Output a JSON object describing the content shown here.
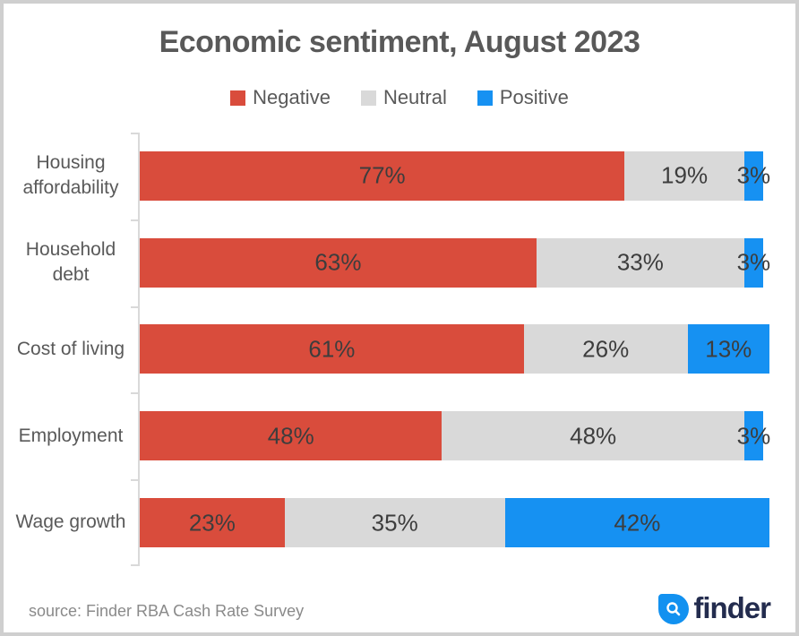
{
  "title": "Economic sentiment, August 2023",
  "chart_data": {
    "type": "bar",
    "orientation": "horizontal",
    "stacked": true,
    "title": "Economic sentiment, August 2023",
    "categories": [
      "Housing affordability",
      "Household debt",
      "Cost of living",
      "Employment",
      "Wage growth"
    ],
    "series": [
      {
        "name": "Negative",
        "color": "#d94c3c",
        "values": [
          77,
          63,
          61,
          48,
          23
        ]
      },
      {
        "name": "Neutral",
        "color": "#d9d9d9",
        "values": [
          19,
          33,
          26,
          48,
          35
        ]
      },
      {
        "name": "Positive",
        "color": "#1691f2",
        "values": [
          3,
          3,
          13,
          3,
          42
        ]
      }
    ],
    "value_suffix": "%",
    "xlim": [
      0,
      100
    ],
    "grid": false,
    "legend_position": "top",
    "axis_color": "#d9d9d9",
    "label_color": "#3d3d3d",
    "category_color": "#595959"
  },
  "footer": {
    "source": "source: Finder RBA Cash Rate Survey",
    "brand": "finder"
  }
}
